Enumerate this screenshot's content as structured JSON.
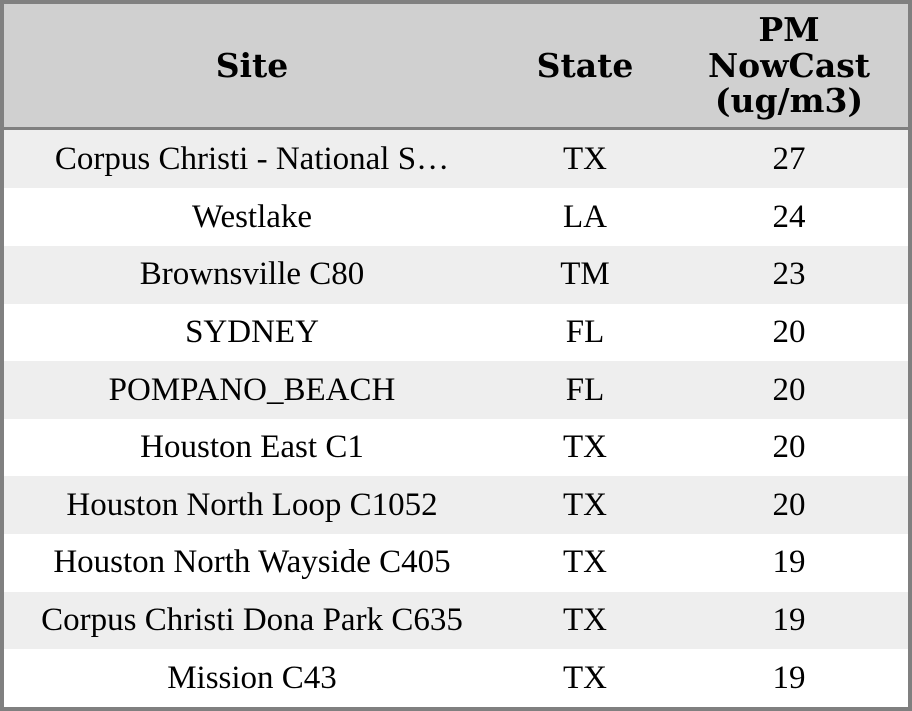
{
  "chart_data": {
    "type": "table",
    "columns": [
      "Site",
      "State",
      "PM NowCast (ug/m3)"
    ],
    "rows": [
      [
        "Corpus Christi - National S…",
        "TX",
        "27"
      ],
      [
        "Westlake",
        "LA",
        "24"
      ],
      [
        "Brownsville C80",
        "TM",
        "23"
      ],
      [
        "SYDNEY",
        "FL",
        "20"
      ],
      [
        "POMPANO_BEACH",
        "FL",
        "20"
      ],
      [
        "Houston East C1",
        "TX",
        "20"
      ],
      [
        "Houston North Loop C1052",
        "TX",
        "20"
      ],
      [
        "Houston North Wayside C405",
        "TX",
        "19"
      ],
      [
        "Corpus Christi Dona Park C635",
        "TX",
        "19"
      ],
      [
        "Mission C43",
        "TX",
        "19"
      ]
    ]
  },
  "colors": {
    "frame_border": "#808080",
    "header_bg": "#d0d0d0",
    "row_stripe_bg": "#eeeeee",
    "row_bg": "#ffffff",
    "text": "#000000"
  }
}
